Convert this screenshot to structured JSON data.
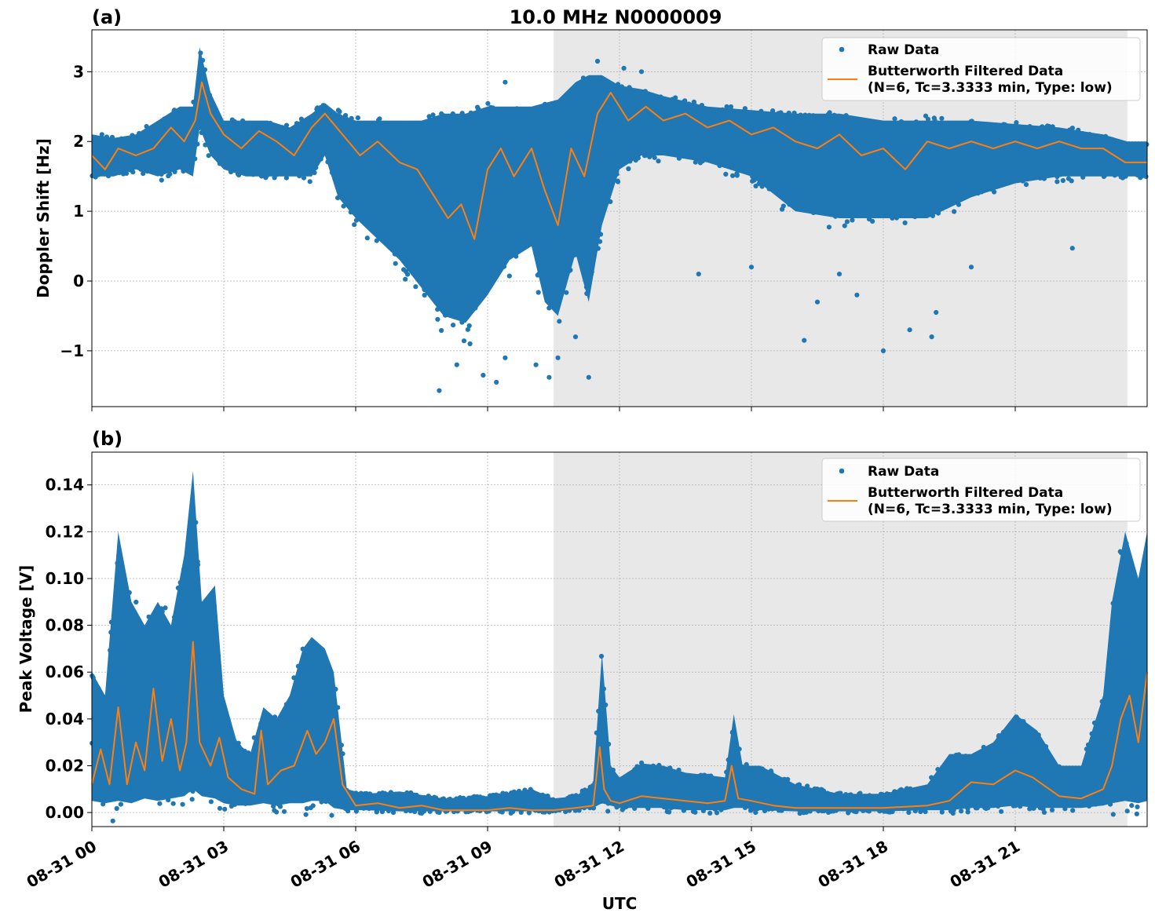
{
  "figure": {
    "title": "10.0 MHz N0000009",
    "xlabel": "UTC",
    "colors": {
      "raw": "#1f77b4",
      "filtered": "#ff7f0e",
      "shade": "#e8e8e8"
    },
    "shaded_region_hours": [
      10.5,
      23.55
    ]
  },
  "chart_data": [
    {
      "type": "scatter",
      "panel_label": "(a)",
      "ylabel": "Doppler Shift [Hz]",
      "xlim_hours": [
        0,
        24
      ],
      "ylim": [
        -1.8,
        3.6
      ],
      "x_ticks_hours": [
        0,
        3,
        6,
        9,
        12,
        15,
        18,
        21
      ],
      "y_ticks": [
        3,
        2,
        1,
        0,
        -1
      ],
      "y_tick_labels": [
        "3",
        "2",
        "1",
        "0",
        "−1"
      ],
      "grid": true,
      "legend_placement": "top-right",
      "legend": [
        "Raw Data",
        "Butterworth Filtered Data",
        "(N=6, Tc=3.3333 min, Type: low)"
      ],
      "series": [
        {
          "name": "Raw Data",
          "kind": "band",
          "x": [
            0,
            0.5,
            1,
            1.5,
            2,
            2.3,
            2.45,
            2.7,
            3,
            3.5,
            4,
            4.5,
            5,
            5.3,
            5.6,
            6,
            6.5,
            7,
            7.5,
            8,
            8.5,
            9,
            9.5,
            10,
            10.3,
            10.6,
            11,
            11.3,
            11.6,
            12,
            12.5,
            13,
            14,
            15,
            16,
            17,
            18,
            19,
            20,
            21,
            22,
            23,
            23.55,
            24
          ],
          "low": [
            1.5,
            1.5,
            1.6,
            1.5,
            1.6,
            1.5,
            2.2,
            1.8,
            1.6,
            1.5,
            1.5,
            1.5,
            1.5,
            1.8,
            1.2,
            0.9,
            0.6,
            0.3,
            -0.1,
            -0.5,
            -0.6,
            -0.2,
            0.3,
            0.5,
            -0.3,
            -0.5,
            0.4,
            -0.3,
            0.8,
            1.6,
            1.8,
            1.8,
            1.7,
            1.5,
            1.0,
            0.9,
            0.9,
            0.9,
            1.2,
            1.4,
            1.5,
            1.5,
            1.5,
            1.5
          ],
          "high": [
            2.1,
            2.05,
            2.1,
            2.3,
            2.5,
            2.5,
            3.35,
            2.7,
            2.3,
            2.3,
            2.3,
            2.2,
            2.4,
            2.55,
            2.4,
            2.3,
            2.3,
            2.3,
            2.3,
            2.4,
            2.4,
            2.5,
            2.5,
            2.5,
            2.55,
            2.6,
            2.85,
            2.95,
            2.95,
            2.8,
            2.75,
            2.65,
            2.5,
            2.45,
            2.4,
            2.4,
            2.3,
            2.3,
            2.3,
            2.25,
            2.2,
            2.1,
            2.0,
            2.0
          ]
        },
        {
          "name": "Butterworth Filtered Data",
          "kind": "line",
          "x": [
            0,
            0.3,
            0.6,
            1,
            1.4,
            1.8,
            2.1,
            2.35,
            2.5,
            2.7,
            3,
            3.4,
            3.8,
            4.2,
            4.6,
            5,
            5.3,
            5.7,
            6.1,
            6.5,
            7,
            7.4,
            7.8,
            8.1,
            8.4,
            8.7,
            9,
            9.3,
            9.6,
            10,
            10.3,
            10.6,
            10.9,
            11.2,
            11.5,
            11.8,
            12.2,
            12.6,
            13,
            13.5,
            14,
            14.5,
            15,
            15.5,
            16,
            16.5,
            17,
            17.5,
            18,
            18.5,
            19,
            19.5,
            20,
            20.5,
            21,
            21.5,
            22,
            22.5,
            23,
            23.5,
            24
          ],
          "y": [
            1.8,
            1.6,
            1.9,
            1.8,
            1.9,
            2.2,
            2.0,
            2.3,
            2.85,
            2.4,
            2.1,
            1.9,
            2.15,
            2.0,
            1.8,
            2.2,
            2.4,
            2.1,
            1.8,
            2.0,
            1.7,
            1.6,
            1.2,
            0.9,
            1.1,
            0.6,
            1.6,
            1.9,
            1.5,
            1.9,
            1.3,
            0.8,
            1.9,
            1.5,
            2.4,
            2.7,
            2.3,
            2.5,
            2.3,
            2.4,
            2.2,
            2.3,
            2.1,
            2.2,
            2.0,
            1.9,
            2.1,
            1.8,
            1.9,
            1.6,
            2.0,
            1.9,
            2.0,
            1.9,
            2.0,
            1.9,
            2.0,
            1.9,
            1.9,
            1.7,
            1.7
          ]
        },
        {
          "name": "Raw Data",
          "kind": "outliers",
          "x": [
            7.9,
            8.3,
            8.6,
            8.9,
            9.2,
            9.4,
            10.1,
            10.4,
            10.6,
            11.0,
            11.3,
            13.8,
            15.0,
            16.2,
            16.5,
            17.0,
            17.4,
            18.0,
            18.6,
            19.1,
            19.2,
            20.0,
            22.3,
            10.4,
            11.5,
            12.1,
            12.5,
            9.4
          ],
          "y": [
            -1.57,
            -1.2,
            -0.9,
            -1.35,
            -1.45,
            -1.1,
            -1.2,
            -1.38,
            -1.1,
            -0.8,
            -1.38,
            0.1,
            0.2,
            -0.85,
            -0.3,
            0.1,
            -0.2,
            -1.0,
            -0.7,
            -0.8,
            -0.45,
            0.2,
            0.47,
            0.4,
            3.15,
            3.05,
            3.0,
            2.85
          ]
        }
      ]
    },
    {
      "type": "scatter",
      "panel_label": "(b)",
      "ylabel": "Peak Voltage [V]",
      "xlim_hours": [
        0,
        24
      ],
      "ylim": [
        -0.006,
        0.154
      ],
      "x_ticks_hours": [
        0,
        3,
        6,
        9,
        12,
        15,
        18,
        21
      ],
      "x_tick_labels": [
        "08-31 00",
        "08-31 03",
        "08-31 06",
        "08-31 09",
        "08-31 12",
        "08-31 15",
        "08-31 18",
        "08-31 21"
      ],
      "y_ticks": [
        0.14,
        0.12,
        0.1,
        0.08,
        0.06,
        0.04,
        0.02,
        0.0
      ],
      "y_tick_labels": [
        "0.14",
        "0.12",
        "0.10",
        "0.08",
        "0.06",
        "0.04",
        "0.02",
        "0.00"
      ],
      "grid": true,
      "legend_placement": "top-right",
      "legend": [
        "Raw Data",
        "Butterworth Filtered Data",
        "(N=6, Tc=3.3333 min, Type: low)"
      ],
      "series": [
        {
          "name": "Raw Data",
          "kind": "band",
          "x": [
            0,
            0.3,
            0.6,
            0.9,
            1.2,
            1.5,
            1.8,
            2.1,
            2.3,
            2.5,
            2.8,
            3.0,
            3.3,
            3.6,
            3.9,
            4.2,
            4.5,
            4.8,
            5.0,
            5.3,
            5.5,
            5.8,
            6.2,
            7,
            8,
            9,
            10,
            10.5,
            11,
            11.4,
            11.6,
            11.8,
            12,
            12.5,
            13,
            13.5,
            14,
            14.4,
            14.6,
            14.8,
            15.2,
            16,
            17,
            18,
            19,
            19.5,
            20,
            20.5,
            21,
            21.5,
            22,
            22.5,
            23,
            23.2,
            23.5,
            23.8,
            24
          ],
          "low": [
            0.005,
            0.004,
            0.005,
            0.004,
            0.006,
            0.005,
            0.006,
            0.007,
            0.01,
            0.007,
            0.006,
            0.004,
            0.003,
            0.003,
            0.004,
            0.003,
            0.004,
            0.004,
            0.005,
            0.005,
            0.002,
            0.001,
            0.001,
            0.0005,
            0.0005,
            0.0005,
            0.0005,
            0.0005,
            0.001,
            0.002,
            0.004,
            0.003,
            0.002,
            0.002,
            0.002,
            0.001,
            0.001,
            0.001,
            0.002,
            0.002,
            0.001,
            0.0005,
            0.0005,
            0.0005,
            0.001,
            0.001,
            0.002,
            0.002,
            0.003,
            0.002,
            0.002,
            0.002,
            0.003,
            0.004,
            0.005,
            0.004,
            0.005
          ],
          "high": [
            0.06,
            0.05,
            0.12,
            0.09,
            0.08,
            0.09,
            0.08,
            0.11,
            0.146,
            0.09,
            0.097,
            0.05,
            0.03,
            0.025,
            0.045,
            0.04,
            0.05,
            0.07,
            0.075,
            0.07,
            0.06,
            0.01,
            0.008,
            0.009,
            0.006,
            0.007,
            0.01,
            0.006,
            0.007,
            0.012,
            0.068,
            0.02,
            0.015,
            0.021,
            0.02,
            0.017,
            0.016,
            0.015,
            0.042,
            0.02,
            0.02,
            0.012,
            0.008,
            0.008,
            0.012,
            0.025,
            0.025,
            0.03,
            0.042,
            0.035,
            0.02,
            0.02,
            0.05,
            0.09,
            0.12,
            0.1,
            0.12
          ]
        },
        {
          "name": "Butterworth Filtered Data",
          "kind": "line",
          "x": [
            0,
            0.2,
            0.4,
            0.6,
            0.8,
            1.0,
            1.2,
            1.4,
            1.6,
            1.8,
            2.0,
            2.15,
            2.3,
            2.45,
            2.7,
            2.9,
            3.1,
            3.4,
            3.7,
            3.85,
            4.0,
            4.3,
            4.6,
            4.9,
            5.1,
            5.3,
            5.5,
            5.7,
            6.0,
            6.5,
            7.0,
            7.5,
            8.0,
            8.5,
            9.0,
            9.5,
            10.0,
            10.5,
            11.0,
            11.4,
            11.55,
            11.65,
            11.8,
            12.0,
            12.5,
            13.0,
            13.5,
            14.0,
            14.4,
            14.55,
            14.7,
            15.0,
            15.5,
            16.0,
            17.0,
            18.0,
            19.0,
            19.5,
            20.0,
            20.5,
            21.0,
            21.4,
            22.0,
            22.5,
            23.0,
            23.2,
            23.4,
            23.6,
            23.8,
            24.0
          ],
          "y": [
            0.012,
            0.027,
            0.012,
            0.045,
            0.012,
            0.03,
            0.018,
            0.053,
            0.022,
            0.04,
            0.018,
            0.03,
            0.073,
            0.03,
            0.02,
            0.032,
            0.015,
            0.01,
            0.008,
            0.035,
            0.012,
            0.018,
            0.02,
            0.035,
            0.025,
            0.03,
            0.04,
            0.012,
            0.003,
            0.004,
            0.002,
            0.003,
            0.001,
            0.001,
            0.001,
            0.002,
            0.001,
            0.001,
            0.002,
            0.003,
            0.028,
            0.01,
            0.005,
            0.004,
            0.007,
            0.006,
            0.005,
            0.004,
            0.005,
            0.02,
            0.006,
            0.005,
            0.003,
            0.002,
            0.002,
            0.002,
            0.003,
            0.005,
            0.013,
            0.012,
            0.018,
            0.015,
            0.007,
            0.006,
            0.01,
            0.02,
            0.04,
            0.05,
            0.03,
            0.06
          ]
        }
      ]
    }
  ]
}
